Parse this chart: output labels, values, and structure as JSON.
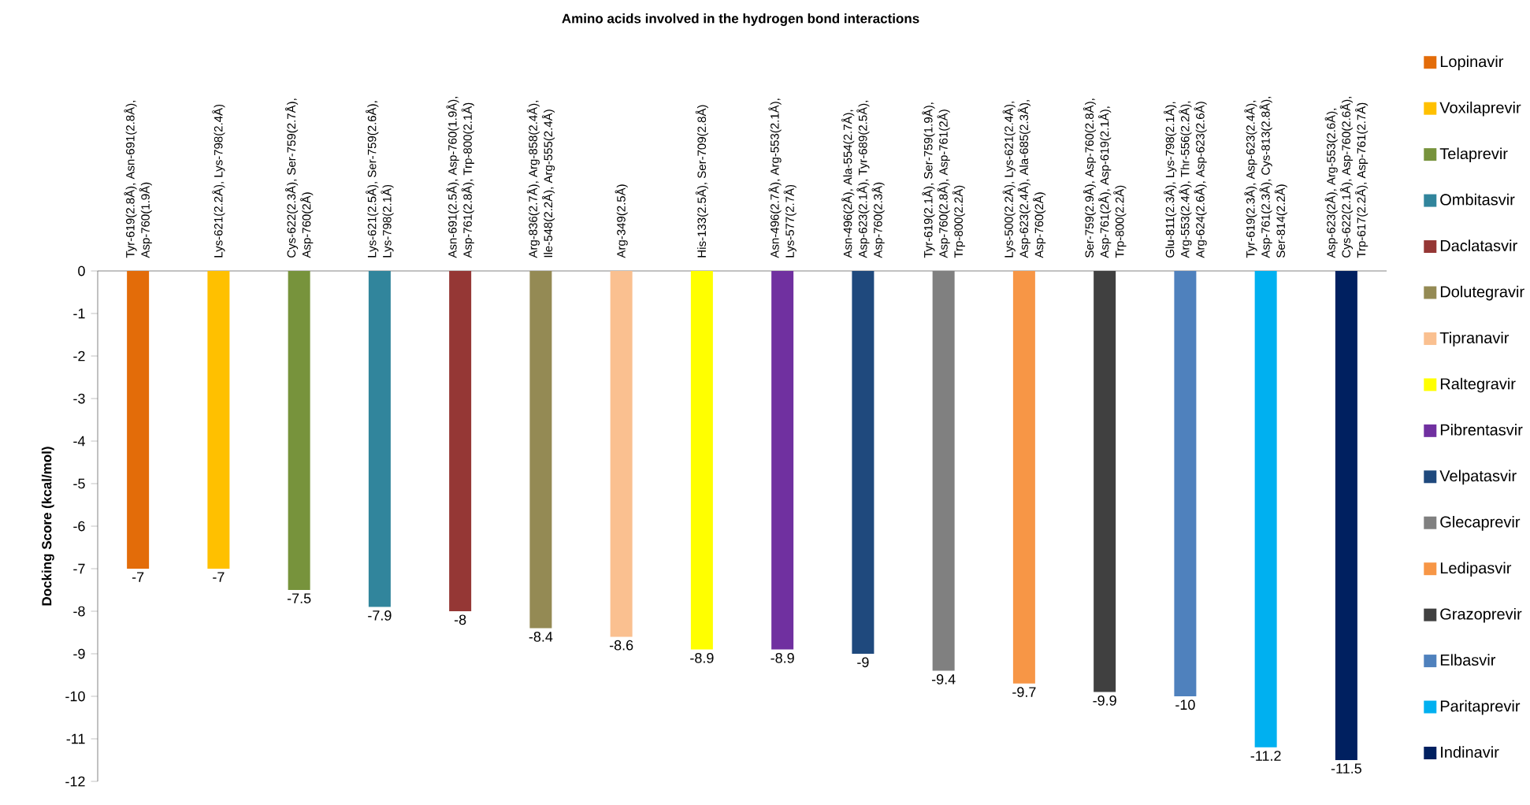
{
  "chart_data": {
    "type": "bar",
    "title": "Amino acids involved in the hydrogen bond interactions",
    "ylabel": "Docking Score (kcal/mol)",
    "categories": [
      null,
      null,
      null,
      null,
      null,
      null,
      null,
      null,
      null,
      null,
      null,
      null,
      null,
      null,
      null,
      null
    ],
    "series": [
      {
        "name": "Lopinavir",
        "color": "#e36c09",
        "values": [
          -7,
          null,
          null,
          null,
          null,
          null,
          null,
          null,
          null,
          null,
          null,
          null,
          null,
          null,
          null,
          null
        ],
        "value_labels": [
          "-7",
          null,
          null,
          null,
          null,
          null,
          null,
          null,
          null,
          null,
          null,
          null,
          null,
          null,
          null,
          null
        ]
      },
      {
        "name": "Voxilaprevir",
        "color": "#ffc000",
        "values": [
          null,
          -7,
          null,
          null,
          null,
          null,
          null,
          null,
          null,
          null,
          null,
          null,
          null,
          null,
          null,
          null
        ],
        "value_labels": [
          null,
          "-7",
          null,
          null,
          null,
          null,
          null,
          null,
          null,
          null,
          null,
          null,
          null,
          null,
          null,
          null
        ]
      },
      {
        "name": "Telaprevir",
        "color": "#77933c",
        "values": [
          null,
          null,
          -7.5,
          null,
          null,
          null,
          null,
          null,
          null,
          null,
          null,
          null,
          null,
          null,
          null,
          null
        ],
        "value_labels": [
          null,
          null,
          "-7.5",
          null,
          null,
          null,
          null,
          null,
          null,
          null,
          null,
          null,
          null,
          null,
          null,
          null
        ]
      },
      {
        "name": "Ombitasvir",
        "color": "#31859c",
        "values": [
          null,
          null,
          null,
          -7.9,
          null,
          null,
          null,
          null,
          null,
          null,
          null,
          null,
          null,
          null,
          null,
          null
        ],
        "value_labels": [
          null,
          null,
          null,
          "-7.9",
          null,
          null,
          null,
          null,
          null,
          null,
          null,
          null,
          null,
          null,
          null,
          null
        ]
      },
      {
        "name": "Daclatasvir",
        "color": "#953735",
        "values": [
          null,
          null,
          null,
          null,
          -8,
          null,
          null,
          null,
          null,
          null,
          null,
          null,
          null,
          null,
          null,
          null
        ],
        "value_labels": [
          null,
          null,
          null,
          null,
          "-8",
          null,
          null,
          null,
          null,
          null,
          null,
          null,
          null,
          null,
          null,
          null
        ]
      },
      {
        "name": "Dolutegravir",
        "color": "#948a54",
        "values": [
          null,
          null,
          null,
          null,
          null,
          -8.4,
          null,
          null,
          null,
          null,
          null,
          null,
          null,
          null,
          null,
          null
        ],
        "value_labels": [
          null,
          null,
          null,
          null,
          null,
          "-8.4",
          null,
          null,
          null,
          null,
          null,
          null,
          null,
          null,
          null,
          null
        ]
      },
      {
        "name": "Tipranavir",
        "color": "#fac090",
        "values": [
          null,
          null,
          null,
          null,
          null,
          null,
          -8.6,
          null,
          null,
          null,
          null,
          null,
          null,
          null,
          null,
          null
        ],
        "value_labels": [
          null,
          null,
          null,
          null,
          null,
          null,
          "-8.6",
          null,
          null,
          null,
          null,
          null,
          null,
          null,
          null,
          null
        ]
      },
      {
        "name": "Raltegravir",
        "color": "#ffff00",
        "values": [
          null,
          null,
          null,
          null,
          null,
          null,
          null,
          -8.9,
          null,
          null,
          null,
          null,
          null,
          null,
          null,
          null
        ],
        "value_labels": [
          null,
          null,
          null,
          null,
          null,
          null,
          null,
          "-8.9",
          null,
          null,
          null,
          null,
          null,
          null,
          null,
          null
        ]
      },
      {
        "name": "Pibrentasvir",
        "color": "#7030a0",
        "values": [
          null,
          null,
          null,
          null,
          null,
          null,
          null,
          null,
          -8.9,
          null,
          null,
          null,
          null,
          null,
          null,
          null
        ],
        "value_labels": [
          null,
          null,
          null,
          null,
          null,
          null,
          null,
          null,
          "-8.9",
          null,
          null,
          null,
          null,
          null,
          null,
          null
        ]
      },
      {
        "name": "Velpatasvir",
        "color": "#1f497d",
        "values": [
          null,
          null,
          null,
          null,
          null,
          null,
          null,
          null,
          null,
          -9,
          null,
          null,
          null,
          null,
          null,
          null
        ],
        "value_labels": [
          null,
          null,
          null,
          null,
          null,
          null,
          null,
          null,
          null,
          "-9",
          null,
          null,
          null,
          null,
          null,
          null
        ]
      },
      {
        "name": "Glecaprevir",
        "color": "#808080",
        "values": [
          null,
          null,
          null,
          null,
          null,
          null,
          null,
          null,
          null,
          null,
          -9.4,
          null,
          null,
          null,
          null,
          null
        ],
        "value_labels": [
          null,
          null,
          null,
          null,
          null,
          null,
          null,
          null,
          null,
          null,
          "-9.4",
          null,
          null,
          null,
          null,
          null
        ]
      },
      {
        "name": "Ledipasvir",
        "color": "#f79646",
        "values": [
          null,
          null,
          null,
          null,
          null,
          null,
          null,
          null,
          null,
          null,
          null,
          -9.7,
          null,
          null,
          null,
          null
        ],
        "value_labels": [
          null,
          null,
          null,
          null,
          null,
          null,
          null,
          null,
          null,
          null,
          null,
          "-9.7",
          null,
          null,
          null,
          null
        ]
      },
      {
        "name": "Grazoprevir",
        "color": "#404040",
        "values": [
          null,
          null,
          null,
          null,
          null,
          null,
          null,
          null,
          null,
          null,
          null,
          null,
          -9.9,
          null,
          null,
          null
        ],
        "value_labels": [
          null,
          null,
          null,
          null,
          null,
          null,
          null,
          null,
          null,
          null,
          null,
          null,
          "-9.9",
          null,
          null,
          null
        ]
      },
      {
        "name": "Elbasvir",
        "color": "#4f81bd",
        "values": [
          null,
          null,
          null,
          null,
          null,
          null,
          null,
          null,
          null,
          null,
          null,
          null,
          null,
          -10,
          null,
          null
        ],
        "value_labels": [
          null,
          null,
          null,
          null,
          null,
          null,
          null,
          null,
          null,
          null,
          null,
          null,
          null,
          "-10",
          null,
          null
        ]
      },
      {
        "name": "Paritaprevir",
        "color": "#00b0f0",
        "values": [
          null,
          null,
          null,
          null,
          null,
          null,
          null,
          null,
          null,
          null,
          null,
          null,
          null,
          null,
          -11.2,
          null
        ],
        "value_labels": [
          null,
          null,
          null,
          null,
          null,
          null,
          null,
          null,
          null,
          null,
          null,
          null,
          null,
          null,
          "-11.2",
          null
        ]
      },
      {
        "name": "Indinavir",
        "color": "#002060",
        "values": [
          null,
          null,
          null,
          null,
          null,
          null,
          null,
          null,
          null,
          null,
          null,
          null,
          null,
          null,
          null,
          -11.5
        ],
        "value_labels": [
          null,
          null,
          null,
          null,
          null,
          null,
          null,
          null,
          null,
          null,
          null,
          null,
          null,
          null,
          null,
          "-11.5"
        ]
      }
    ],
    "annotations": [
      "Tyr-619(2.8Å), Asn-691(2.8Å), Asp-760(1.9Å)",
      "Lys-621(2.2Å), Lys-798(2.4Å)",
      "Cys-622(2.3Å), Ser-759(2.7Å), Asp-760(2Å)",
      "Lys-621(2.5Å), Ser-759(2.6Å), Lys-798(2.1Å)",
      "Asn-691(2.5Å), Asp-760(1.9Å), Asp-761(2.8Å), Trp-800(2.1Å)",
      "Arg-836(2.7Å), Arg-858(2.4Å), Ile-548(2.2Å), Arg-555(2.4Å)",
      "Arg-349(2.5Å)",
      "His-133(2.5Å), Ser-709(2.8Å)",
      "Asn-496(2.7Å), Arg-553(2.1Å), Lys-577(2.7Å)",
      "Asn-496(2Å), Ala-554(2.7Å), Asp-623(2.1Å), Tyr-689(2.5Å), Asp-760(2.3Å)",
      "Tyr-619(2.1Å), Ser-759(1.9Å), Asp-760(2.8Å), Asp-761(2Å) Trp-800(2.2Å)",
      "Lys-500(2.2Å), Lys-621(2.4Å), Asp-623(2.4Å), Ala-685(2.3Å), Asp-760(2Å)",
      "Ser-759(2.9Å), Asp-760(2.8Å), Asp-761(2Å), Asp-619(2.1Å), Trp-800(2.2Å)",
      "Glu-811(2.3Å), Lys-798(2.1Å), Arg-553(2.4Å), Thr-556(2.2Å), Arg-624(2.6Å), Asp-623(2.6Å)",
      "Tyr-619(2.3Å), Asp-623(2.4Å), Asp-761(2.3Å), Cys-813(2.8Å), Ser-814(2.2Å)",
      "Asp-623(2Å), Arg-553(2.6Å), Cys-622(2.1Å), Asp-760(2.6Å), Trp-617(2.2Å), Asp-761(2.7Å)"
    ],
    "ylim": [
      -12,
      0
    ],
    "yticks": [
      0,
      -1,
      -2,
      -3,
      -4,
      -5,
      -6,
      -7,
      -8,
      -9,
      -10,
      -11,
      -12
    ],
    "legend": "right",
    "grid": false
  }
}
